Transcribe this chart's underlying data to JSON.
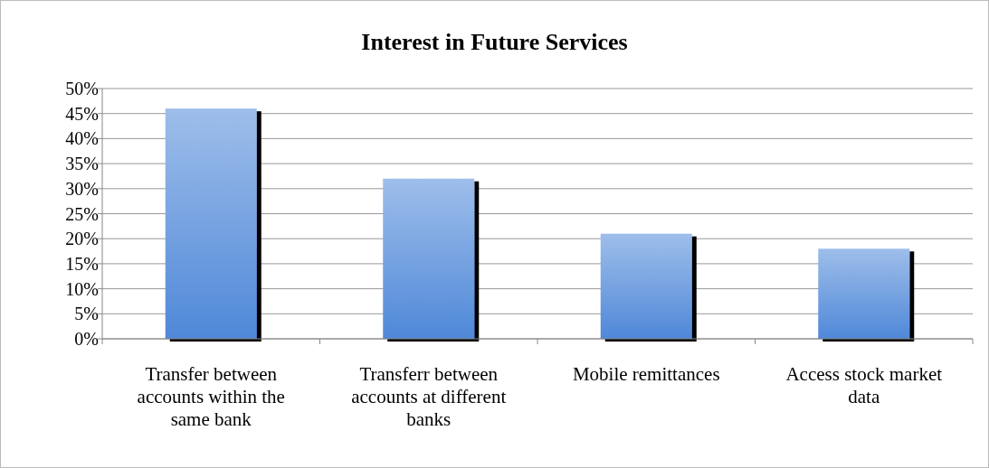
{
  "chart_data": {
    "type": "bar",
    "title": "Interest in Future Services",
    "categories": [
      "Transfer between accounts within the same bank",
      "Transferr between accounts at different banks",
      "Mobile remittances",
      "Access stock market data"
    ],
    "values": [
      46,
      32,
      21,
      18
    ],
    "color": "#4f88d8",
    "ylim": [
      0,
      50
    ],
    "yticks": [
      {
        "value": 0,
        "label": "0%"
      },
      {
        "value": 5,
        "label": "5%"
      },
      {
        "value": 10,
        "label": "10%"
      },
      {
        "value": 15,
        "label": "15%"
      },
      {
        "value": 20,
        "label": "20%"
      },
      {
        "value": 25,
        "label": "25%"
      },
      {
        "value": 30,
        "label": "30%"
      },
      {
        "value": 35,
        "label": "35%"
      },
      {
        "value": 40,
        "label": "40%"
      },
      {
        "value": 45,
        "label": "45%"
      },
      {
        "value": 50,
        "label": "50%"
      }
    ],
    "grid": "y"
  }
}
